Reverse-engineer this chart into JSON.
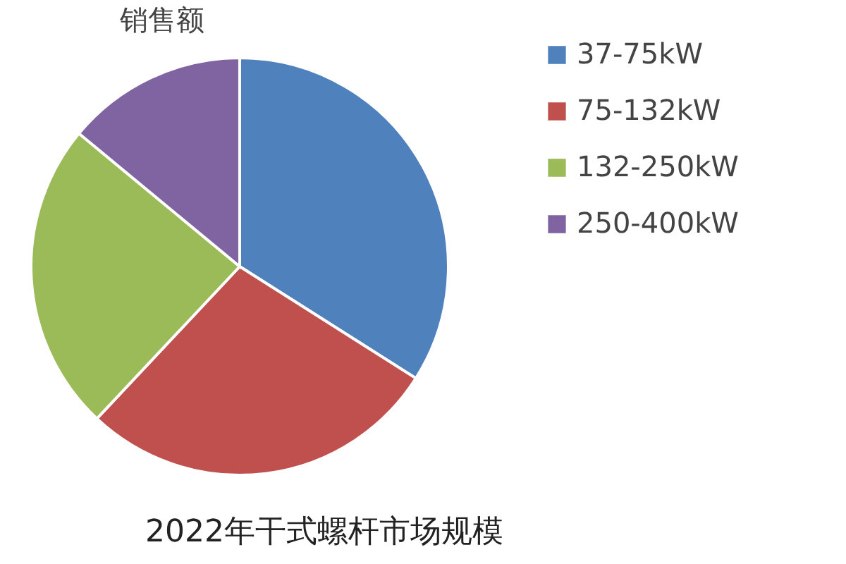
{
  "chart_data": {
    "type": "pie",
    "title": "销售额",
    "annotations": [
      "2022年干式螺杆市场规模"
    ],
    "categories": [
      "37-75kW",
      "75-132kW",
      "132-250kW",
      "250-400kW"
    ],
    "values": [
      34,
      28,
      24,
      14
    ],
    "colors": [
      "#4f81bd",
      "#c0504d",
      "#9bbb59",
      "#8064a2"
    ],
    "legend": "right"
  }
}
